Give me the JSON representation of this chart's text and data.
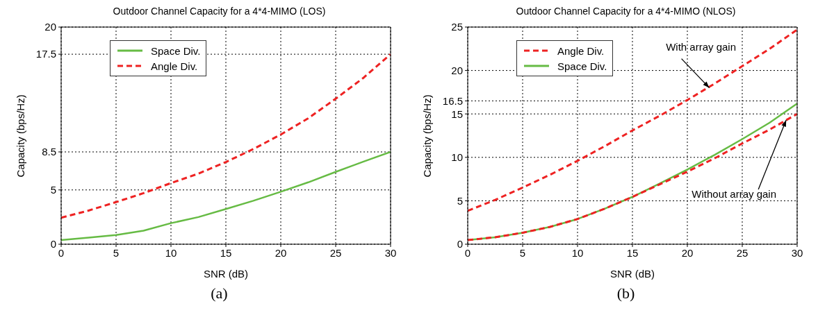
{
  "chart_data": [
    {
      "type": "line",
      "title": "Outdoor Channel Capacity for a 4*4-MIMO (LOS)",
      "xlabel": "SNR (dB)",
      "ylabel": "Capacity (bps/Hz)",
      "x": [
        0,
        2.5,
        5,
        7.5,
        10,
        12.5,
        15,
        17.5,
        20,
        22.5,
        25,
        27.5,
        30
      ],
      "xlim": [
        0,
        30
      ],
      "xticks": [
        0,
        5,
        10,
        15,
        20,
        25,
        30
      ],
      "ylim": [
        0,
        20
      ],
      "yticks": [
        0,
        5,
        8.5,
        17.5,
        20
      ],
      "grid": true,
      "legend": "top left",
      "marker": "none",
      "series": [
        {
          "name": "Space Div.",
          "color": "#66bb44",
          "line_style": "solid",
          "values": [
            0.39,
            0.6,
            0.84,
            1.25,
            1.94,
            2.5,
            3.24,
            4.0,
            4.83,
            5.7,
            6.66,
            7.6,
            8.5
          ]
        },
        {
          "name": "Angle Div.",
          "color": "#ee2222",
          "line_style": "dashed",
          "values": [
            2.44,
            3.1,
            3.88,
            4.7,
            5.63,
            6.5,
            7.57,
            8.76,
            10.1,
            11.6,
            13.4,
            15.3,
            17.5
          ]
        }
      ],
      "annotations": [
        "(a)"
      ]
    },
    {
      "type": "line",
      "title": "Outdoor Channel Capacity for a 4*4-MIMO (NLOS)",
      "xlabel": "SNR (dB)",
      "ylabel": "Capacity (bps/Hz)",
      "x": [
        0,
        2.5,
        5,
        7.5,
        10,
        12.5,
        15,
        17.5,
        20,
        22.5,
        25,
        27.5,
        30
      ],
      "xlim": [
        0,
        30
      ],
      "xticks": [
        0,
        5,
        10,
        15,
        20,
        25,
        30
      ],
      "ylim": [
        0,
        25
      ],
      "yticks": [
        0,
        5,
        10,
        15,
        16.5,
        20,
        25
      ],
      "grid": true,
      "legend": "top left",
      "marker": "none",
      "series": [
        {
          "name": "Angle Div.",
          "color": "#ee2222",
          "line_style": "dashed",
          "values": [
            3.85,
            5.1,
            6.52,
            8.0,
            9.6,
            11.3,
            13.1,
            14.8,
            16.6,
            18.5,
            20.5,
            22.5,
            24.7
          ]
        },
        {
          "name": "Space Div.",
          "color": "#66bb44",
          "line_style": "solid",
          "values": [
            0.48,
            0.8,
            1.32,
            2.0,
            2.9,
            4.1,
            5.45,
            7.0,
            8.6,
            10.3,
            12.1,
            14.0,
            16.2
          ]
        },
        {
          "color": "#ee2222",
          "line_style": "dashed",
          "values": [
            0.48,
            0.8,
            1.32,
            2.0,
            2.9,
            4.1,
            5.45,
            6.9,
            8.35,
            9.9,
            11.6,
            13.2,
            15.0
          ]
        }
      ],
      "annotations": [
        {
          "text": "With array gain",
          "x": 22,
          "y": 18
        },
        {
          "text": "Without array gain",
          "x": 29,
          "y": 14.3
        },
        "(b)"
      ]
    }
  ]
}
